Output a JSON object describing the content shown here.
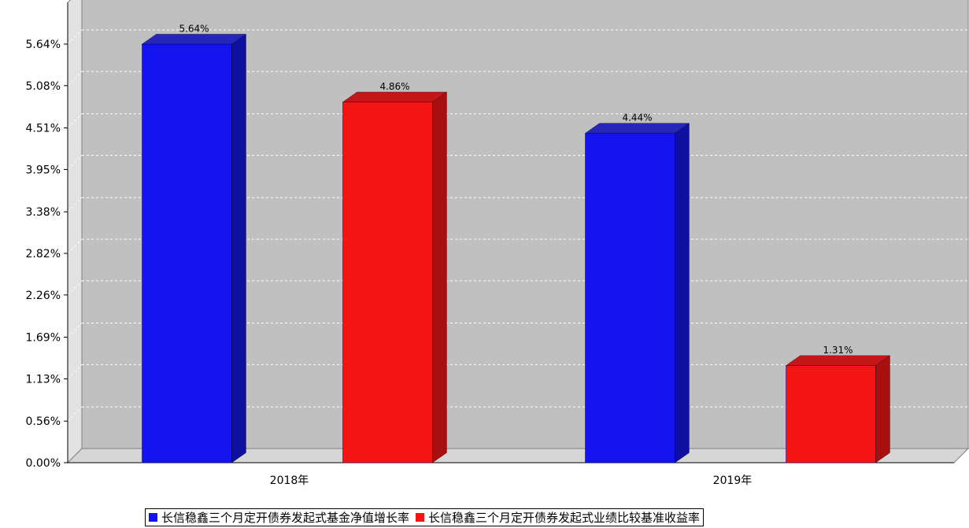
{
  "chart_data": {
    "type": "bar",
    "categories": [
      "2018年",
      "2019年"
    ],
    "series": [
      {
        "name": "长信稳鑫三个月定开债券发起式基金净值增长率",
        "values": [
          5.64,
          4.44
        ],
        "labels": [
          "5.64%",
          "4.44%"
        ],
        "color": "#1414f0",
        "side_color": "#1010a0",
        "top_color": "#2626b8"
      },
      {
        "name": "长信稳鑫三个月定开债券发起式业绩比较基准收益率",
        "values": [
          4.86,
          1.31
        ],
        "labels": [
          "4.86%",
          "1.31%"
        ],
        "color": "#f51414",
        "side_color": "#a81010",
        "top_color": "#c41818"
      }
    ],
    "y_ticks": [
      {
        "value": 0.0,
        "label": "0.00%"
      },
      {
        "value": 0.56,
        "label": "0.56%"
      },
      {
        "value": 1.13,
        "label": "1.13%"
      },
      {
        "value": 1.69,
        "label": "1.69%"
      },
      {
        "value": 2.26,
        "label": "2.26%"
      },
      {
        "value": 2.82,
        "label": "2.82%"
      },
      {
        "value": 3.38,
        "label": "3.38%"
      },
      {
        "value": 3.95,
        "label": "3.95%"
      },
      {
        "value": 4.51,
        "label": "4.51%"
      },
      {
        "value": 5.08,
        "label": "5.08%"
      },
      {
        "value": 5.64,
        "label": "5.64%"
      }
    ],
    "ylim": [
      0,
      6.2
    ],
    "grid": true,
    "legend_position": "bottom",
    "plot_background": "#c0c0c0"
  }
}
